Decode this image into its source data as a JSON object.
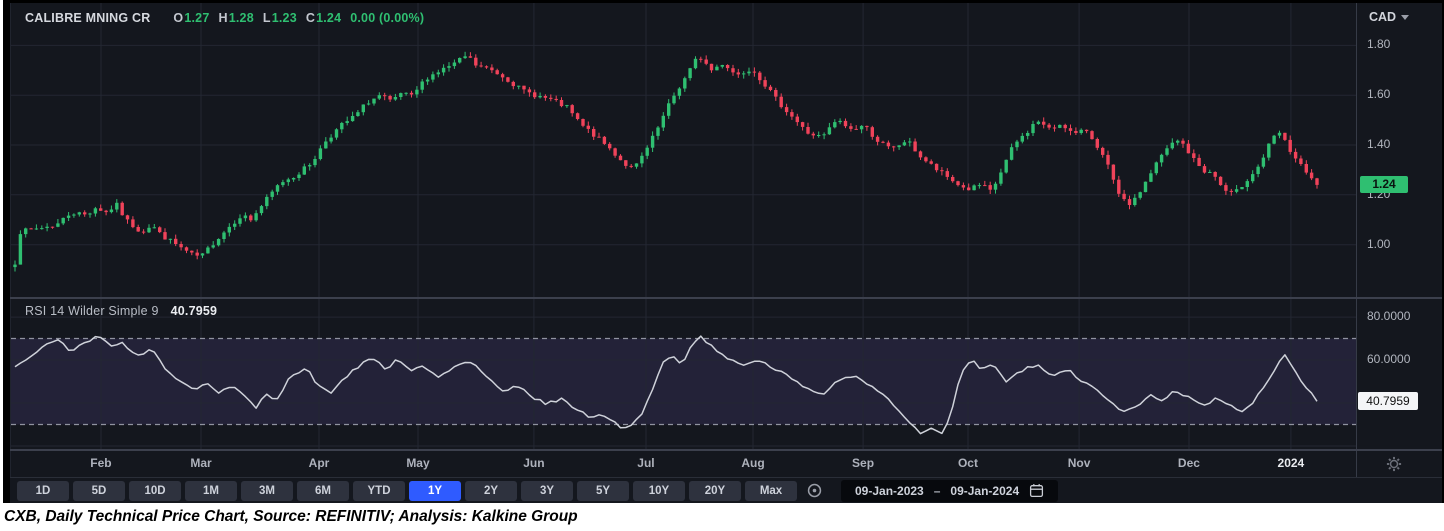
{
  "header": {
    "symbol": "CALIBRE MNING CR",
    "ohlc": [
      {
        "label": "O",
        "value": "1.27"
      },
      {
        "label": "H",
        "value": "1.28"
      },
      {
        "label": "L",
        "value": "1.23"
      },
      {
        "label": "C",
        "value": "1.24"
      }
    ],
    "change": "0.00 (0.00%)"
  },
  "currency": {
    "label": "CAD"
  },
  "rsi": {
    "legend": "RSI 14 Wilder Simple 9",
    "value": "40.7959"
  },
  "time_axis": {
    "months": [
      {
        "label": "Feb",
        "f": 0.0669
      },
      {
        "label": "Mar",
        "f": 0.1413
      },
      {
        "label": "Apr",
        "f": 0.229
      },
      {
        "label": "May",
        "f": 0.3026
      },
      {
        "label": "Jun",
        "f": 0.3888
      },
      {
        "label": "Jul",
        "f": 0.4721
      },
      {
        "label": "Aug",
        "f": 0.5517
      },
      {
        "label": "Sep",
        "f": 0.6335
      },
      {
        "label": "Oct",
        "f": 0.7115
      },
      {
        "label": "Nov",
        "f": 0.7941
      },
      {
        "label": "Dec",
        "f": 0.8758
      },
      {
        "label": "2024",
        "f": 0.9516,
        "major": true
      }
    ]
  },
  "toolbar": {
    "ranges": [
      "1D",
      "5D",
      "10D",
      "1M",
      "3M",
      "6M",
      "YTD",
      "1Y",
      "2Y",
      "3Y",
      "5Y",
      "10Y",
      "20Y",
      "Max"
    ],
    "active": "1Y",
    "date_from": "09-Jan-2023",
    "date_sep": "–",
    "date_to": "09-Jan-2024"
  },
  "caption": "CXB, Daily Technical Price Chart, Source: REFINITIV; Analysis: Kalkine Group",
  "colors": {
    "up": "#2fbf71",
    "down": "#f0435a",
    "accent": "#2f5bff",
    "bg": "#14171e",
    "grid": "#232732",
    "axis_text": "#b2b6bf",
    "rsi_line": "#cfd2da",
    "band_fill": "rgba(140,110,235,0.13)",
    "dashed": "#9093a0",
    "last_badge": "#2fbf71"
  },
  "chart_data": [
    {
      "type": "candlestick",
      "title": "CALIBRE MNING CR",
      "currency": "CAD",
      "ohlc_display": {
        "open": 1.27,
        "high": 1.28,
        "low": 1.23,
        "close": 1.24,
        "change": 0.0,
        "change_pct": "0.00%"
      },
      "x_range": [
        "09-Jan-2023",
        "09-Jan-2024"
      ],
      "ylim": [
        0.79,
        1.97
      ],
      "y_ticks": [
        1.8,
        1.6,
        1.4,
        1.2,
        1.0
      ],
      "x_tick_labels": [
        "Feb",
        "Mar",
        "Apr",
        "May",
        "Jun",
        "Jul",
        "Aug",
        "Sep",
        "Oct",
        "Nov",
        "Dec",
        "2024"
      ],
      "num_candles": 244,
      "first_open": 0.91,
      "last_close": 1.24,
      "close_keypoints": {
        "f": [
          0.0,
          0.003,
          0.012,
          0.032,
          0.043,
          0.055,
          0.062,
          0.07,
          0.078,
          0.085,
          0.097,
          0.105,
          0.112,
          0.124,
          0.135,
          0.143,
          0.151,
          0.162,
          0.174,
          0.181,
          0.193,
          0.204,
          0.216,
          0.228,
          0.239,
          0.251,
          0.262,
          0.27,
          0.281,
          0.289,
          0.297,
          0.304,
          0.316,
          0.327,
          0.339,
          0.347,
          0.354,
          0.366,
          0.377,
          0.389,
          0.4,
          0.412,
          0.424,
          0.435,
          0.447,
          0.458,
          0.467,
          0.475,
          0.485,
          0.495,
          0.504,
          0.516,
          0.525,
          0.535,
          0.544,
          0.554,
          0.566,
          0.575,
          0.585,
          0.596,
          0.608,
          0.62,
          0.631,
          0.643,
          0.652,
          0.662,
          0.673,
          0.685,
          0.696,
          0.708,
          0.719,
          0.731,
          0.742,
          0.75,
          0.758,
          0.767,
          0.777,
          0.785,
          0.795,
          0.804,
          0.813,
          0.823,
          0.831,
          0.839,
          0.849,
          0.858,
          0.867,
          0.877,
          0.887,
          0.895,
          0.904,
          0.912,
          0.921,
          0.928,
          0.936,
          0.946,
          0.956,
          0.965,
          0.971,
          0.979,
          0.987,
          0.994,
          1.0
        ],
        "price": [
          0.93,
          1.05,
          1.06,
          1.08,
          1.13,
          1.12,
          1.15,
          1.13,
          1.16,
          1.1,
          1.05,
          1.08,
          1.04,
          1.0,
          0.96,
          0.95,
          1.0,
          1.06,
          1.12,
          1.1,
          1.18,
          1.25,
          1.28,
          1.33,
          1.42,
          1.48,
          1.52,
          1.57,
          1.6,
          1.57,
          1.61,
          1.59,
          1.67,
          1.7,
          1.73,
          1.76,
          1.72,
          1.7,
          1.67,
          1.62,
          1.6,
          1.58,
          1.55,
          1.48,
          1.43,
          1.38,
          1.33,
          1.3,
          1.38,
          1.48,
          1.58,
          1.68,
          1.76,
          1.7,
          1.73,
          1.68,
          1.71,
          1.65,
          1.58,
          1.52,
          1.45,
          1.43,
          1.5,
          1.46,
          1.48,
          1.42,
          1.38,
          1.42,
          1.35,
          1.3,
          1.26,
          1.22,
          1.24,
          1.21,
          1.3,
          1.4,
          1.45,
          1.5,
          1.46,
          1.49,
          1.44,
          1.46,
          1.4,
          1.32,
          1.18,
          1.16,
          1.24,
          1.33,
          1.4,
          1.42,
          1.35,
          1.3,
          1.28,
          1.22,
          1.2,
          1.26,
          1.32,
          1.42,
          1.45,
          1.38,
          1.32,
          1.27,
          1.24
        ]
      }
    },
    {
      "type": "line",
      "title": "RSI 14 Wilder Simple 9",
      "last_value": 40.7959,
      "ylim": [
        18.6,
        88.4
      ],
      "y_ticks": [
        80,
        60
      ],
      "bands": [
        70,
        30
      ],
      "keypoints": {
        "f": [
          0.0,
          0.02,
          0.032,
          0.043,
          0.055,
          0.066,
          0.074,
          0.081,
          0.093,
          0.105,
          0.116,
          0.128,
          0.139,
          0.147,
          0.155,
          0.166,
          0.178,
          0.185,
          0.193,
          0.201,
          0.212,
          0.224,
          0.231,
          0.243,
          0.254,
          0.266,
          0.277,
          0.285,
          0.293,
          0.304,
          0.312,
          0.324,
          0.335,
          0.347,
          0.358,
          0.366,
          0.377,
          0.385,
          0.397,
          0.408,
          0.42,
          0.431,
          0.443,
          0.45,
          0.462,
          0.47,
          0.481,
          0.489,
          0.497,
          0.504,
          0.512,
          0.52,
          0.527,
          0.543,
          0.558,
          0.573,
          0.589,
          0.604,
          0.62,
          0.631,
          0.643,
          0.654,
          0.666,
          0.677,
          0.689,
          0.696,
          0.704,
          0.712,
          0.719,
          0.727,
          0.735,
          0.742,
          0.75,
          0.762,
          0.773,
          0.785,
          0.796,
          0.808,
          0.819,
          0.831,
          0.842,
          0.852,
          0.862,
          0.873,
          0.881,
          0.89,
          0.9,
          0.912,
          0.923,
          0.935,
          0.942,
          0.95,
          0.958,
          0.965,
          0.971,
          0.975,
          0.982,
          0.988,
          0.994,
          0.998,
          1.0
        ],
        "value": [
          57,
          65,
          70,
          64,
          69,
          71,
          66,
          69,
          62,
          65,
          55,
          50,
          46,
          50,
          44,
          48,
          42,
          38,
          45,
          41,
          53,
          56,
          50,
          45,
          52,
          58,
          61,
          56,
          60,
          55,
          58,
          52,
          56,
          60,
          55,
          50,
          45,
          48,
          43,
          40,
          42,
          37,
          33,
          35,
          30,
          28,
          34,
          45,
          58,
          62,
          58,
          68,
          71,
          62,
          58,
          60,
          54,
          48,
          44,
          50,
          53,
          49,
          44,
          38,
          29,
          26,
          28,
          25.5,
          35,
          55,
          60,
          55,
          58,
          50,
          55,
          58,
          52,
          56,
          50,
          46,
          40,
          36,
          38,
          44,
          41,
          46,
          43,
          39,
          42,
          38,
          36,
          40,
          46,
          53,
          60,
          63,
          57,
          50,
          46,
          43,
          40.8
        ]
      }
    }
  ]
}
